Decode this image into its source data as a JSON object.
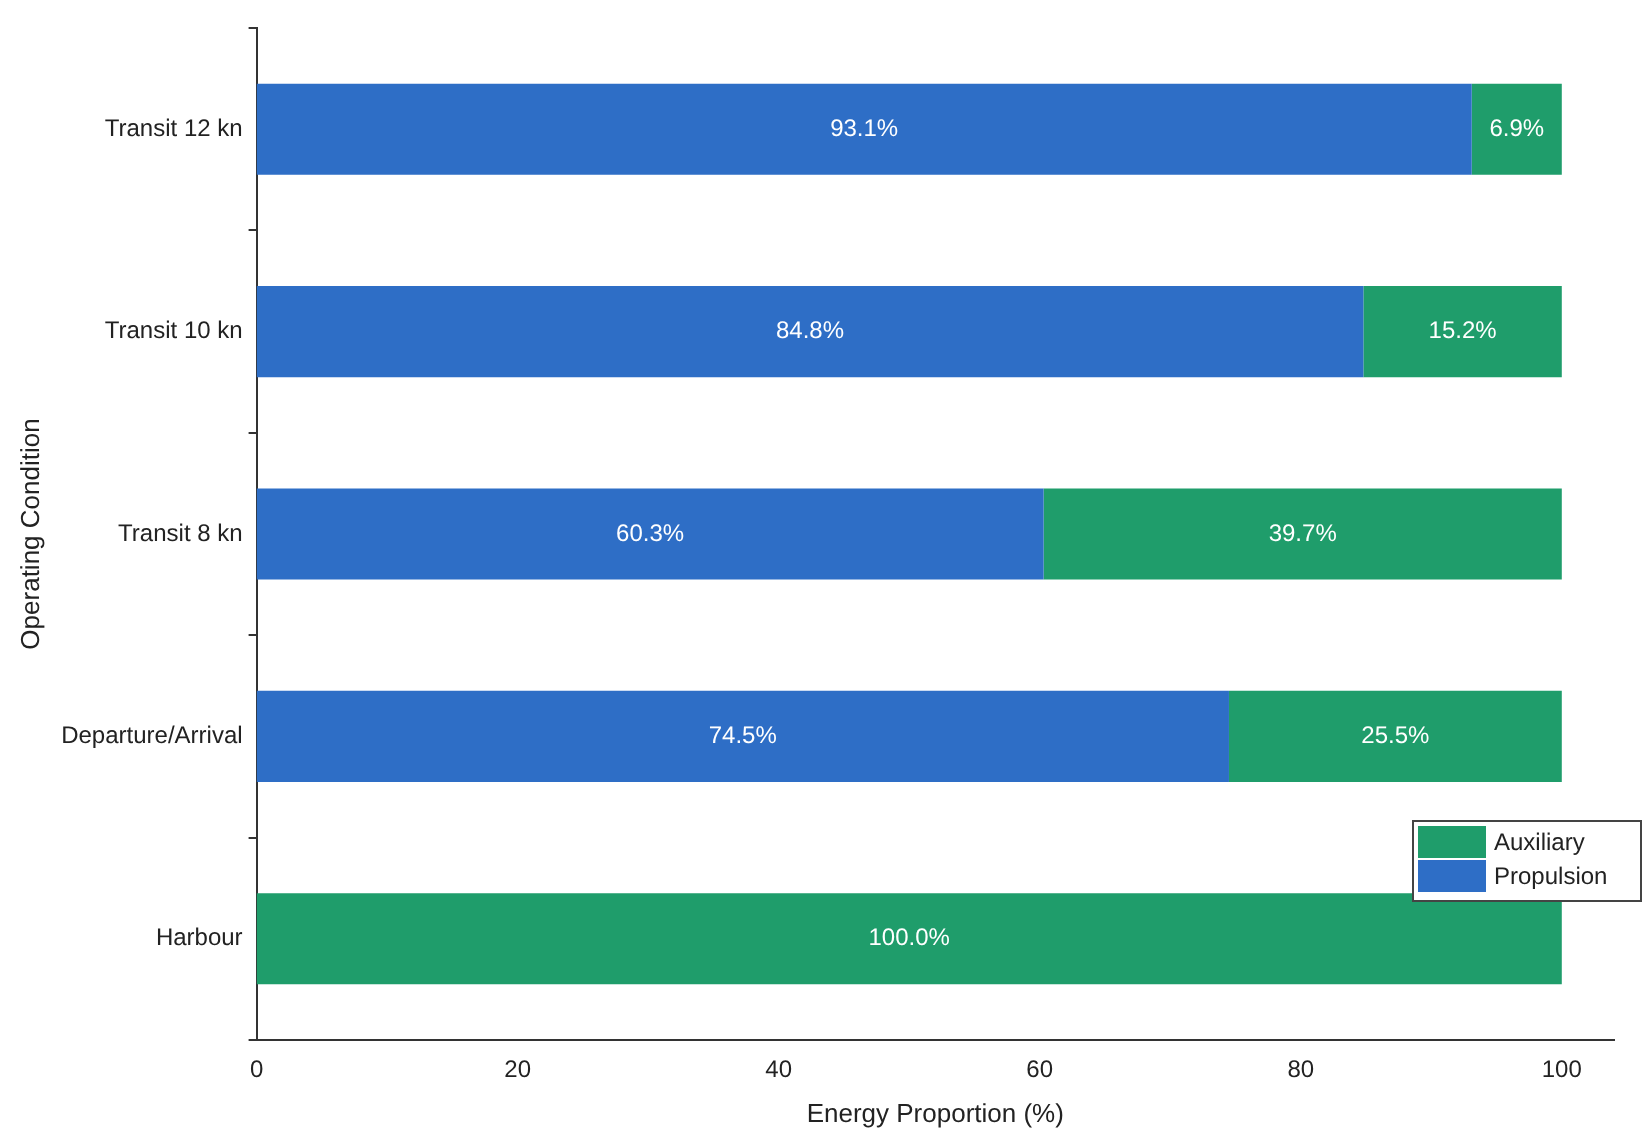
{
  "chart_data": {
    "type": "bar",
    "orientation": "horizontal",
    "stacked": true,
    "xlabel": "Energy Proportion (%)",
    "ylabel": "Operating Condition",
    "categories": [
      "Transit 12 kn",
      "Transit 10 kn",
      "Transit 8 kn",
      "Departure/Arrival",
      "Harbour"
    ],
    "series": [
      {
        "name": "Propulsion",
        "color": "#2e6ec6",
        "values": [
          93.1,
          84.8,
          60.3,
          74.5,
          0
        ],
        "value_labels": [
          "93.1%",
          "84.8%",
          "60.3%",
          "74.5%",
          null
        ]
      },
      {
        "name": "Auxiliary",
        "color": "#1f9d6b",
        "values": [
          6.9,
          15.2,
          39.7,
          25.5,
          100
        ],
        "value_labels": [
          "6.9%",
          "15.2%",
          "39.7%",
          "25.5%",
          "100.0%"
        ]
      }
    ],
    "xlim": [
      0,
      104
    ],
    "xticks": [
      0,
      20,
      40,
      60,
      80,
      100
    ],
    "grid": false,
    "legend": "bottom right"
  }
}
